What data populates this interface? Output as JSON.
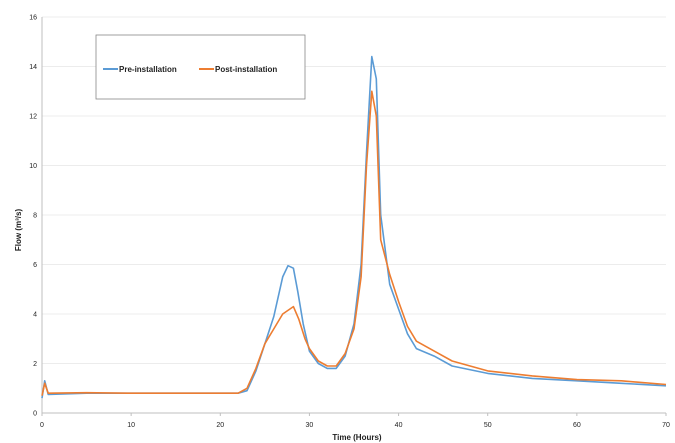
{
  "chart_data": {
    "type": "line",
    "title": "",
    "xlabel": "Time (Hours)",
    "ylabel": "Flow (m³/s)",
    "xlim": [
      0,
      70
    ],
    "ylim": [
      0,
      16
    ],
    "x_ticks": [
      "0",
      "10",
      "20",
      "30",
      "40",
      "50",
      "60",
      "70"
    ],
    "y_ticks": [
      "0",
      "2",
      "4",
      "6",
      "8",
      "10",
      "12",
      "14",
      "16"
    ],
    "grid": "horizontal",
    "legend_position": "top-left",
    "series": [
      {
        "name": "Pre-installation",
        "color": "#5b9bd5",
        "points": [
          [
            0,
            0.6
          ],
          [
            0.3,
            1.3
          ],
          [
            0.7,
            0.75
          ],
          [
            5,
            0.8
          ],
          [
            10,
            0.8
          ],
          [
            15,
            0.8
          ],
          [
            20,
            0.8
          ],
          [
            22,
            0.8
          ],
          [
            23,
            0.9
          ],
          [
            24,
            1.7
          ],
          [
            25,
            2.8
          ],
          [
            26,
            3.9
          ],
          [
            27,
            5.5
          ],
          [
            27.6,
            5.95
          ],
          [
            28.2,
            5.85
          ],
          [
            28.7,
            4.9
          ],
          [
            29.3,
            3.6
          ],
          [
            30,
            2.5
          ],
          [
            31,
            2.0
          ],
          [
            32,
            1.8
          ],
          [
            33,
            1.8
          ],
          [
            34,
            2.3
          ],
          [
            35,
            3.6
          ],
          [
            35.8,
            6.0
          ],
          [
            36.4,
            10.5
          ],
          [
            37,
            14.4
          ],
          [
            37.5,
            13.5
          ],
          [
            38,
            8.0
          ],
          [
            39,
            5.2
          ],
          [
            40,
            4.2
          ],
          [
            41,
            3.2
          ],
          [
            42,
            2.6
          ],
          [
            44,
            2.3
          ],
          [
            46,
            1.9
          ],
          [
            50,
            1.6
          ],
          [
            55,
            1.4
          ],
          [
            60,
            1.3
          ],
          [
            65,
            1.2
          ],
          [
            70,
            1.1
          ]
        ]
      },
      {
        "name": "Post-installation",
        "color": "#ed7d31",
        "points": [
          [
            0,
            0.7
          ],
          [
            0.3,
            1.2
          ],
          [
            0.7,
            0.8
          ],
          [
            5,
            0.82
          ],
          [
            10,
            0.8
          ],
          [
            15,
            0.8
          ],
          [
            20,
            0.8
          ],
          [
            22,
            0.8
          ],
          [
            23,
            1.0
          ],
          [
            24,
            1.8
          ],
          [
            25,
            2.8
          ],
          [
            26,
            3.4
          ],
          [
            27,
            4.0
          ],
          [
            28.2,
            4.3
          ],
          [
            28.8,
            3.8
          ],
          [
            29.5,
            3.0
          ],
          [
            30,
            2.6
          ],
          [
            31,
            2.1
          ],
          [
            32,
            1.9
          ],
          [
            33,
            1.9
          ],
          [
            34,
            2.4
          ],
          [
            35,
            3.4
          ],
          [
            35.8,
            5.5
          ],
          [
            36.4,
            10.0
          ],
          [
            37,
            13.0
          ],
          [
            37.5,
            12.0
          ],
          [
            38,
            7.0
          ],
          [
            39,
            5.6
          ],
          [
            40,
            4.5
          ],
          [
            41,
            3.5
          ],
          [
            42,
            2.9
          ],
          [
            44,
            2.5
          ],
          [
            46,
            2.1
          ],
          [
            50,
            1.7
          ],
          [
            55,
            1.5
          ],
          [
            60,
            1.35
          ],
          [
            65,
            1.3
          ],
          [
            70,
            1.15
          ]
        ]
      }
    ]
  }
}
